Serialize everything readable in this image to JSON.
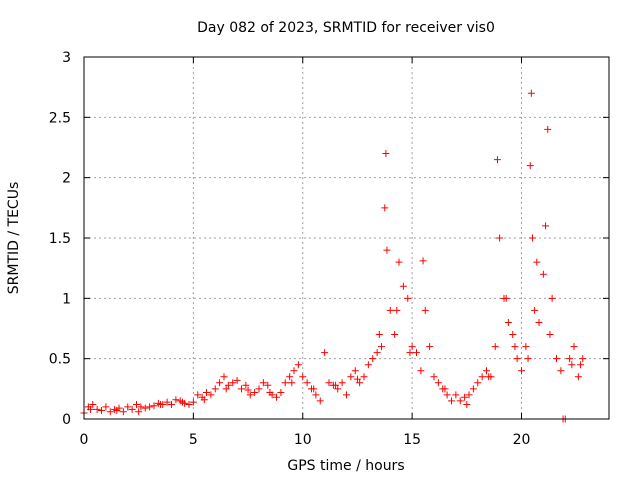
{
  "chart_data": {
    "type": "scatter",
    "title": "Day 082 of 2023, SRMTID for receiver vis0",
    "xlabel": "GPS time / hours",
    "ylabel": "SRMTID / TECUs",
    "xlim": [
      0,
      24
    ],
    "ylim": [
      0,
      3
    ],
    "xticks": [
      0,
      5,
      10,
      15,
      20
    ],
    "xtick_labels": [
      "0",
      "5",
      "10",
      "15",
      "20"
    ],
    "yticks": [
      0,
      0.5,
      1,
      1.5,
      2,
      2.5,
      3
    ],
    "ytick_labels": [
      "0",
      "0.5",
      "1",
      "1.5",
      "2",
      "2.5",
      "3"
    ],
    "grid": true,
    "marker": "+",
    "color": "#ff0000",
    "series": [
      {
        "name": "vis0",
        "x": [
          0.0,
          0.2,
          0.4,
          0.6,
          0.8,
          1.0,
          1.2,
          1.4,
          1.6,
          1.8,
          2.0,
          2.2,
          2.4,
          2.6,
          2.8,
          3.0,
          3.2,
          3.4,
          3.6,
          3.8,
          4.0,
          4.2,
          4.4,
          4.6,
          4.8,
          5.0,
          5.2,
          5.4,
          5.6,
          5.8,
          6.0,
          6.2,
          6.4,
          6.6,
          6.8,
          7.0,
          7.2,
          7.4,
          7.6,
          7.8,
          8.0,
          8.2,
          8.4,
          8.6,
          8.8,
          9.0,
          9.2,
          9.4,
          9.6,
          9.8,
          10.0,
          10.2,
          10.4,
          10.6,
          10.8,
          11.0,
          11.2,
          11.4,
          11.6,
          11.8,
          12.0,
          12.2,
          12.4,
          12.6,
          12.8,
          13.0,
          13.2,
          13.4,
          13.6,
          13.75,
          13.8,
          13.85,
          14.0,
          14.2,
          14.4,
          14.6,
          14.8,
          15.0,
          15.2,
          15.4,
          15.5,
          15.6,
          15.8,
          16.0,
          16.2,
          16.4,
          16.6,
          16.8,
          17.0,
          17.2,
          17.4,
          17.6,
          17.8,
          18.0,
          18.2,
          18.4,
          18.6,
          18.8,
          18.9,
          19.0,
          19.2,
          19.4,
          19.6,
          19.8,
          20.0,
          20.2,
          20.3,
          20.4,
          20.45,
          20.5,
          20.6,
          20.8,
          21.0,
          21.1,
          21.2,
          21.4,
          21.6,
          21.8,
          22.0,
          22.2,
          22.4,
          22.6,
          22.8,
          0.3,
          1.5,
          2.5,
          3.5,
          4.5,
          5.5,
          6.5,
          7.5,
          8.5,
          9.5,
          10.5,
          11.5,
          12.5,
          13.5,
          14.3,
          14.9,
          16.5,
          17.5,
          18.5,
          19.3,
          19.7,
          20.7,
          21.3,
          21.9,
          22.3,
          22.7
        ],
        "y": [
          0.05,
          0.1,
          0.12,
          0.08,
          0.07,
          0.1,
          0.06,
          0.08,
          0.09,
          0.06,
          0.1,
          0.08,
          0.12,
          0.1,
          0.09,
          0.1,
          0.11,
          0.13,
          0.12,
          0.14,
          0.12,
          0.16,
          0.15,
          0.13,
          0.12,
          0.14,
          0.2,
          0.18,
          0.22,
          0.2,
          0.25,
          0.3,
          0.35,
          0.28,
          0.3,
          0.32,
          0.25,
          0.28,
          0.2,
          0.22,
          0.25,
          0.3,
          0.28,
          0.2,
          0.18,
          0.22,
          0.3,
          0.35,
          0.4,
          0.45,
          0.35,
          0.3,
          0.25,
          0.2,
          0.15,
          0.55,
          0.3,
          0.28,
          0.25,
          0.3,
          0.2,
          0.35,
          0.4,
          0.3,
          0.35,
          0.45,
          0.5,
          0.55,
          0.6,
          1.75,
          2.2,
          1.4,
          0.9,
          0.7,
          1.3,
          1.1,
          1.0,
          0.6,
          0.55,
          0.4,
          1.31,
          0.9,
          0.6,
          0.35,
          0.3,
          0.25,
          0.2,
          0.15,
          0.2,
          0.15,
          0.18,
          0.2,
          0.25,
          0.3,
          0.35,
          0.4,
          0.35,
          0.6,
          2.15,
          1.5,
          1.0,
          0.8,
          0.7,
          0.5,
          0.4,
          0.6,
          0.5,
          2.1,
          2.7,
          1.5,
          0.9,
          0.8,
          1.2,
          1.6,
          2.4,
          1.0,
          0.5,
          0.4,
          0.0,
          0.5,
          0.6,
          0.35,
          0.5,
          0.08,
          0.07,
          0.06,
          0.12,
          0.14,
          0.16,
          0.25,
          0.24,
          0.22,
          0.3,
          0.25,
          0.28,
          0.33,
          0.7,
          0.9,
          0.55,
          0.25,
          0.12,
          0.35,
          1.0,
          0.6,
          1.3,
          0.7,
          0.0,
          0.45,
          0.45
        ]
      }
    ]
  }
}
